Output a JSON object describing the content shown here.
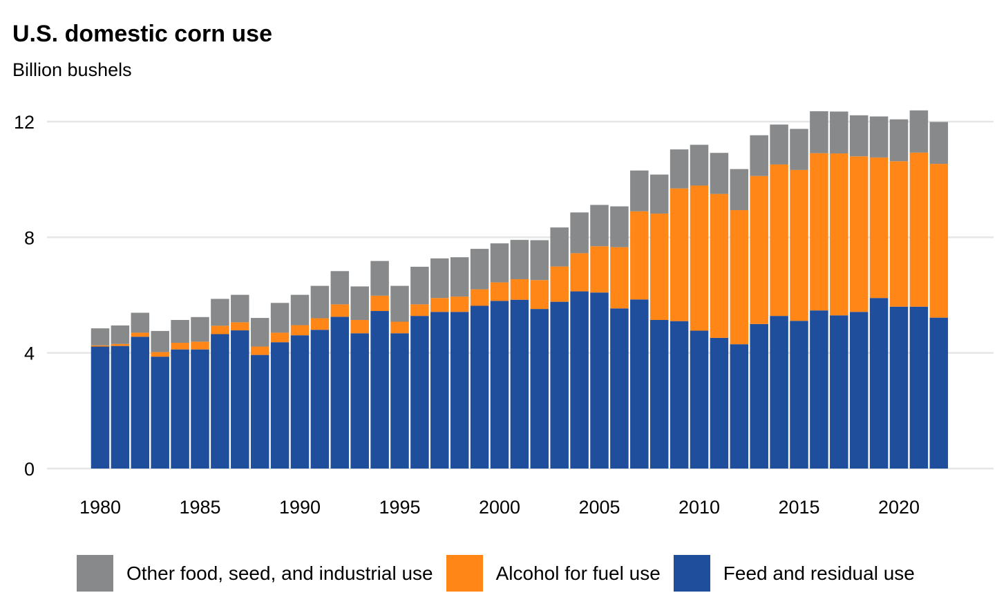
{
  "header": {
    "title": "U.S. domestic corn use",
    "subtitle": "Billion bushels"
  },
  "colors": {
    "other": "#87898a",
    "alcohol": "#ff8617",
    "feed": "#1f4e9c",
    "grid": "#e6e6e6"
  },
  "legend": [
    {
      "label": "Other food, seed, and industrial use",
      "color": "#87898a",
      "icon": "gray-square-icon"
    },
    {
      "label": "Alcohol for fuel use",
      "color": "#ff8617",
      "icon": "orange-square-icon"
    },
    {
      "label": "Feed and residual use",
      "color": "#1f4e9c",
      "icon": "blue-square-icon"
    }
  ],
  "chart_data": {
    "type": "bar",
    "stacked": true,
    "title": "U.S. domestic corn use",
    "ylabel": "Billion bushels",
    "xlabel": "",
    "ylim": [
      0,
      12.5
    ],
    "yticks": [
      0,
      4,
      8,
      12
    ],
    "xticks": [
      1980,
      1985,
      1990,
      1995,
      2000,
      2005,
      2010,
      2015,
      2020
    ],
    "grid": true,
    "legend_position": "bottom",
    "categories": [
      1980,
      1981,
      1982,
      1983,
      1984,
      1985,
      1986,
      1987,
      1988,
      1989,
      1990,
      1991,
      1992,
      1993,
      1994,
      1995,
      1996,
      1997,
      1998,
      1999,
      2000,
      2001,
      2002,
      2003,
      2004,
      2005,
      2006,
      2007,
      2008,
      2009,
      2010,
      2011,
      2012,
      2013,
      2014,
      2015,
      2016,
      2017,
      2018,
      2019,
      2020,
      2021,
      2022
    ],
    "series": [
      {
        "name": "Feed and residual use",
        "key": "feed",
        "values": [
          4.22,
          4.24,
          4.56,
          3.87,
          4.12,
          4.12,
          4.65,
          4.78,
          3.93,
          4.37,
          4.61,
          4.8,
          5.25,
          4.68,
          5.45,
          4.68,
          5.28,
          5.42,
          5.42,
          5.63,
          5.8,
          5.84,
          5.52,
          5.77,
          6.13,
          6.09,
          5.54,
          5.85,
          5.14,
          5.1,
          4.77,
          4.52,
          4.3,
          5.0,
          5.28,
          5.11,
          5.47,
          5.3,
          5.42,
          5.9,
          5.6,
          5.6,
          5.22
        ]
      },
      {
        "name": "Alcohol for fuel use",
        "key": "alcohol",
        "values": [
          0.04,
          0.07,
          0.14,
          0.16,
          0.23,
          0.27,
          0.29,
          0.28,
          0.29,
          0.33,
          0.35,
          0.4,
          0.43,
          0.46,
          0.53,
          0.4,
          0.4,
          0.48,
          0.53,
          0.57,
          0.64,
          0.71,
          1.0,
          1.22,
          1.32,
          1.6,
          2.12,
          3.05,
          3.68,
          4.59,
          5.02,
          4.98,
          4.64,
          5.12,
          5.24,
          5.22,
          5.44,
          5.6,
          5.38,
          4.86,
          5.03,
          5.33,
          5.32
        ]
      },
      {
        "name": "Other food, seed, and industrial use",
        "key": "other",
        "values": [
          0.59,
          0.64,
          0.69,
          0.73,
          0.79,
          0.85,
          0.93,
          0.95,
          0.99,
          1.03,
          1.05,
          1.12,
          1.15,
          1.16,
          1.2,
          1.24,
          1.3,
          1.37,
          1.36,
          1.4,
          1.35,
          1.36,
          1.38,
          1.35,
          1.41,
          1.43,
          1.41,
          1.41,
          1.35,
          1.35,
          1.41,
          1.42,
          1.42,
          1.41,
          1.38,
          1.42,
          1.45,
          1.45,
          1.42,
          1.42,
          1.45,
          1.46,
          1.45
        ]
      }
    ]
  }
}
